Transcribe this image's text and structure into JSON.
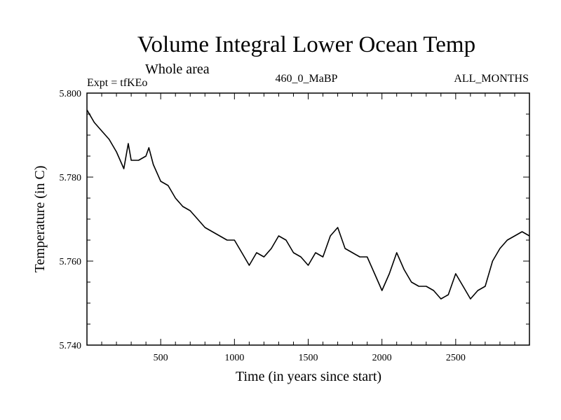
{
  "header": {
    "title": "Volume Integral Lower Ocean Temp",
    "subtitle": "Whole area",
    "expt": "Expt = tfKEo",
    "period": "460_0_MaBP",
    "months": "ALL_MONTHS"
  },
  "chart_data": {
    "type": "line",
    "title": "Volume Integral Lower Ocean Temp",
    "xlabel": "Time (in years since start)",
    "ylabel": "Temperature (in C)",
    "xlim": [
      0,
      3000
    ],
    "ylim": [
      5.74,
      5.8
    ],
    "xticks": [
      500,
      1000,
      1500,
      2000,
      2500
    ],
    "xtick_labels": [
      "500",
      "1000",
      "1500",
      "2000",
      "2500"
    ],
    "yticks": [
      5.74,
      5.76,
      5.78,
      5.8
    ],
    "ytick_labels": [
      "5.740",
      "5.760",
      "5.780",
      "5.800"
    ],
    "grid": false,
    "series": [
      {
        "x": [
          0,
          50,
          100,
          150,
          200,
          250,
          280,
          300,
          350,
          400,
          420,
          450,
          500,
          550,
          600,
          650,
          700,
          750,
          800,
          850,
          900,
          950,
          1000,
          1050,
          1100,
          1150,
          1200,
          1250,
          1300,
          1350,
          1400,
          1450,
          1500,
          1550,
          1600,
          1650,
          1700,
          1750,
          1800,
          1850,
          1900,
          1950,
          2000,
          2050,
          2100,
          2150,
          2200,
          2250,
          2300,
          2350,
          2400,
          2450,
          2500,
          2550,
          2600,
          2650,
          2700,
          2750,
          2800,
          2850,
          2900,
          2950,
          3000
        ],
        "y": [
          5.796,
          5.793,
          5.791,
          5.789,
          5.786,
          5.782,
          5.788,
          5.784,
          5.784,
          5.785,
          5.787,
          5.783,
          5.779,
          5.778,
          5.775,
          5.773,
          5.772,
          5.77,
          5.768,
          5.767,
          5.766,
          5.765,
          5.765,
          5.762,
          5.759,
          5.762,
          5.761,
          5.763,
          5.766,
          5.765,
          5.762,
          5.761,
          5.759,
          5.762,
          5.761,
          5.766,
          5.768,
          5.763,
          5.762,
          5.761,
          5.761,
          5.757,
          5.753,
          5.757,
          5.762,
          5.758,
          5.755,
          5.754,
          5.754,
          5.753,
          5.751,
          5.752,
          5.757,
          5.754,
          5.751,
          5.753,
          5.754,
          5.76,
          5.763,
          5.765,
          5.766,
          5.767,
          5.766
        ]
      }
    ]
  }
}
